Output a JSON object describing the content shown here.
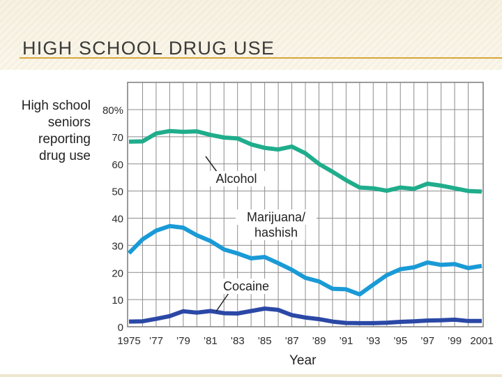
{
  "slide": {
    "title": "HIGH SCHOOL DRUG USE"
  },
  "chart_data": {
    "type": "line",
    "ylabel": "High school\nseniors\nreporting\ndrug use",
    "xlabel": "Year",
    "xlim": [
      1975,
      2001
    ],
    "ylim": [
      0,
      80
    ],
    "grid": true,
    "y_ticks": [
      0,
      10,
      20,
      30,
      40,
      50,
      60,
      70,
      80
    ],
    "y_tick_labels": [
      "0",
      "10",
      "20",
      "30",
      "40",
      "50",
      "60",
      "70",
      "80%"
    ],
    "x_ticks": [
      1975,
      1977,
      1979,
      1981,
      1983,
      1985,
      1987,
      1989,
      1991,
      1993,
      1995,
      1997,
      1999,
      2001
    ],
    "x_tick_labels": [
      "1975",
      "’77",
      "’79",
      "’81",
      "’83",
      "’85",
      "’87",
      "’89",
      "’91",
      "’93",
      "’95",
      "’97",
      "’99",
      "2001"
    ],
    "x": [
      1975,
      1976,
      1977,
      1978,
      1979,
      1980,
      1981,
      1982,
      1983,
      1984,
      1985,
      1986,
      1987,
      1988,
      1989,
      1990,
      1991,
      1992,
      1993,
      1994,
      1995,
      1996,
      1997,
      1998,
      1999,
      2000,
      2001
    ],
    "series": [
      {
        "name": "Alcohol",
        "label_lines": [
          "Alcohol"
        ],
        "color": "#1fad8c",
        "values": [
          68.2,
          68.3,
          71.2,
          72.1,
          71.8,
          72.0,
          70.7,
          69.7,
          69.4,
          67.2,
          65.9,
          65.3,
          66.4,
          63.9,
          60.0,
          57.1,
          54.0,
          51.3,
          51.0,
          50.1,
          51.3,
          50.8,
          52.7,
          52.0,
          51.0,
          50.0,
          49.8
        ]
      },
      {
        "name": "Marijuana/ hashish",
        "label_lines": [
          "Marijuana/",
          "hashish"
        ],
        "color": "#1a9ad6",
        "values": [
          27.1,
          32.2,
          35.4,
          37.1,
          36.5,
          33.7,
          31.6,
          28.5,
          27.0,
          25.2,
          25.7,
          23.4,
          21.0,
          18.0,
          16.7,
          14.0,
          13.8,
          11.9,
          15.5,
          19.0,
          21.2,
          21.9,
          23.7,
          22.8,
          23.1,
          21.6,
          22.4
        ]
      },
      {
        "name": "Cocaine",
        "label_lines": [
          "Cocaine"
        ],
        "color": "#2b48a6",
        "values": [
          1.9,
          2.0,
          2.9,
          3.9,
          5.7,
          5.2,
          5.8,
          5.0,
          4.9,
          5.8,
          6.7,
          6.2,
          4.3,
          3.4,
          2.8,
          1.9,
          1.4,
          1.3,
          1.3,
          1.5,
          1.8,
          2.0,
          2.3,
          2.4,
          2.6,
          2.1,
          2.1
        ]
      }
    ]
  }
}
